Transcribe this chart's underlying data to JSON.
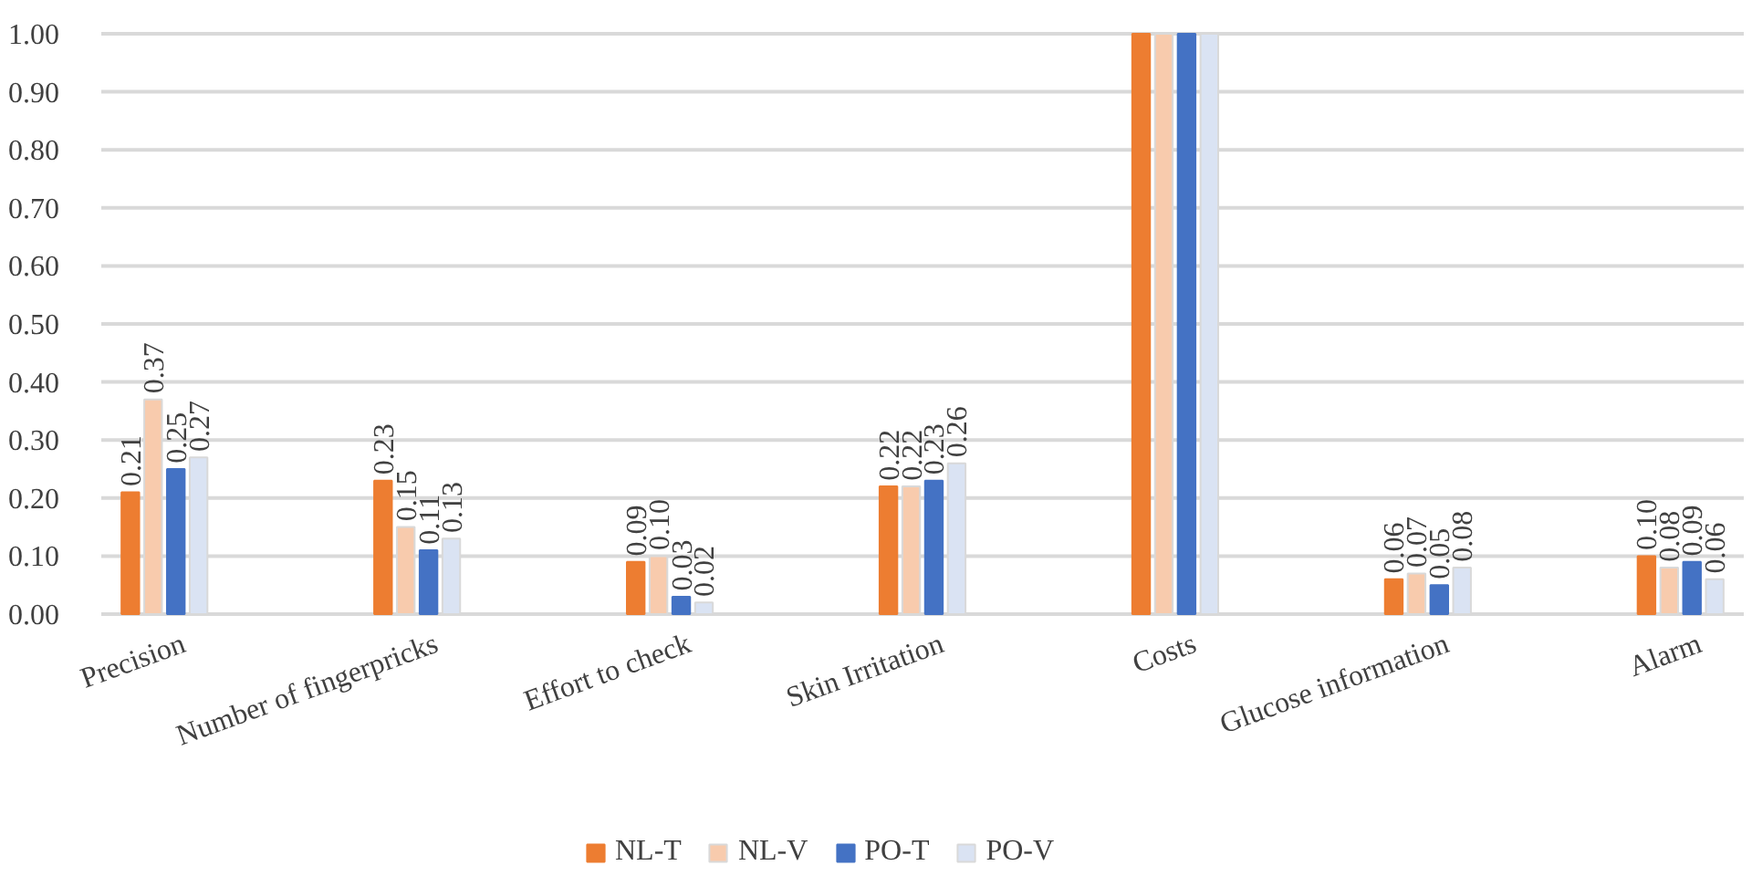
{
  "chart_data": {
    "type": "bar",
    "categories": [
      "Precision",
      "Number of fingerpricks",
      "Effort to check",
      "Skin Irritation",
      "Costs",
      "Glucose information",
      "Alarm"
    ],
    "series": [
      {
        "name": "NL-T",
        "color": "#ed7d31",
        "values": [
          0.21,
          0.23,
          0.09,
          0.22,
          1.0,
          0.06,
          0.1
        ],
        "value_labels": [
          "0.21",
          "0.23",
          "0.09",
          "0.22",
          null,
          "0.06",
          "0.10"
        ]
      },
      {
        "name": "NL-V",
        "color": "#f8cbad",
        "values": [
          0.37,
          0.15,
          0.1,
          0.22,
          1.0,
          0.07,
          0.08
        ],
        "value_labels": [
          "0.37",
          "0.15",
          "0.10",
          "0.22",
          null,
          "0.07",
          "0.08"
        ]
      },
      {
        "name": "PO-T",
        "color": "#4472c4",
        "values": [
          0.25,
          0.11,
          0.03,
          0.23,
          1.0,
          0.05,
          0.09
        ],
        "value_labels": [
          "0.25",
          "0.11",
          "0.03",
          "0.23",
          null,
          "0.05",
          "0.09"
        ]
      },
      {
        "name": "PO-V",
        "color": "#dae3f3",
        "values": [
          0.27,
          0.13,
          0.02,
          0.26,
          1.0,
          0.08,
          0.06
        ],
        "value_labels": [
          "0.27",
          "0.13",
          "0.02",
          "0.26",
          null,
          "0.08",
          "0.06"
        ]
      }
    ],
    "ylim": [
      0,
      1.0
    ],
    "yticks": [
      {
        "value": 0,
        "label": "0.00"
      },
      {
        "value": 0.1,
        "label": "0.10"
      },
      {
        "value": 0.2,
        "label": "0.20"
      },
      {
        "value": 0.3,
        "label": "0.30"
      },
      {
        "value": 0.4,
        "label": "0.40"
      },
      {
        "value": 0.5,
        "label": "0.50"
      },
      {
        "value": 0.6,
        "label": "0.60"
      },
      {
        "value": 0.7,
        "label": "0.70"
      },
      {
        "value": 0.8,
        "label": "0.80"
      },
      {
        "value": 0.9,
        "label": "0.90"
      },
      {
        "value": 1.0,
        "label": "1.00"
      }
    ],
    "grid": "y",
    "legend": "bottom"
  }
}
